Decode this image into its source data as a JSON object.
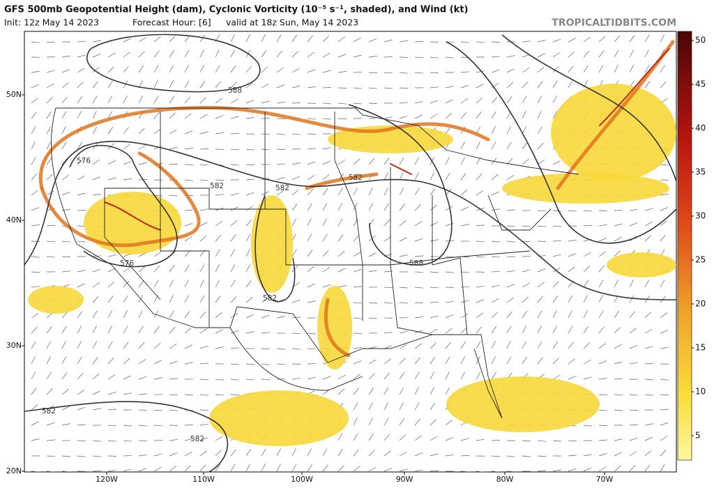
{
  "header": {
    "title": "GFS 500mb Geopotential Height (dam), Cyclonic Vorticity (10⁻⁵ s⁻¹, shaded), and Wind (kt)",
    "init": "Init: 12z May 14 2023",
    "forecast_hour": "Forecast Hour: [6]",
    "valid": "valid at 18z Sun, May 14 2023",
    "source": "TROPICALTIDBITS.COM"
  },
  "map": {
    "latitude_labels": [
      "50N",
      "40N",
      "30N",
      "20N"
    ],
    "longitude_labels": [
      "120W",
      "110W",
      "100W",
      "90W",
      "80W",
      "70W"
    ],
    "contour_labels": [
      "588",
      "576",
      "582",
      "582",
      "582",
      "576",
      "582",
      "588",
      "582",
      "582"
    ]
  },
  "colorbar": {
    "ticks": [
      5,
      10,
      15,
      20,
      25,
      30,
      35,
      40,
      45,
      50
    ]
  }
}
